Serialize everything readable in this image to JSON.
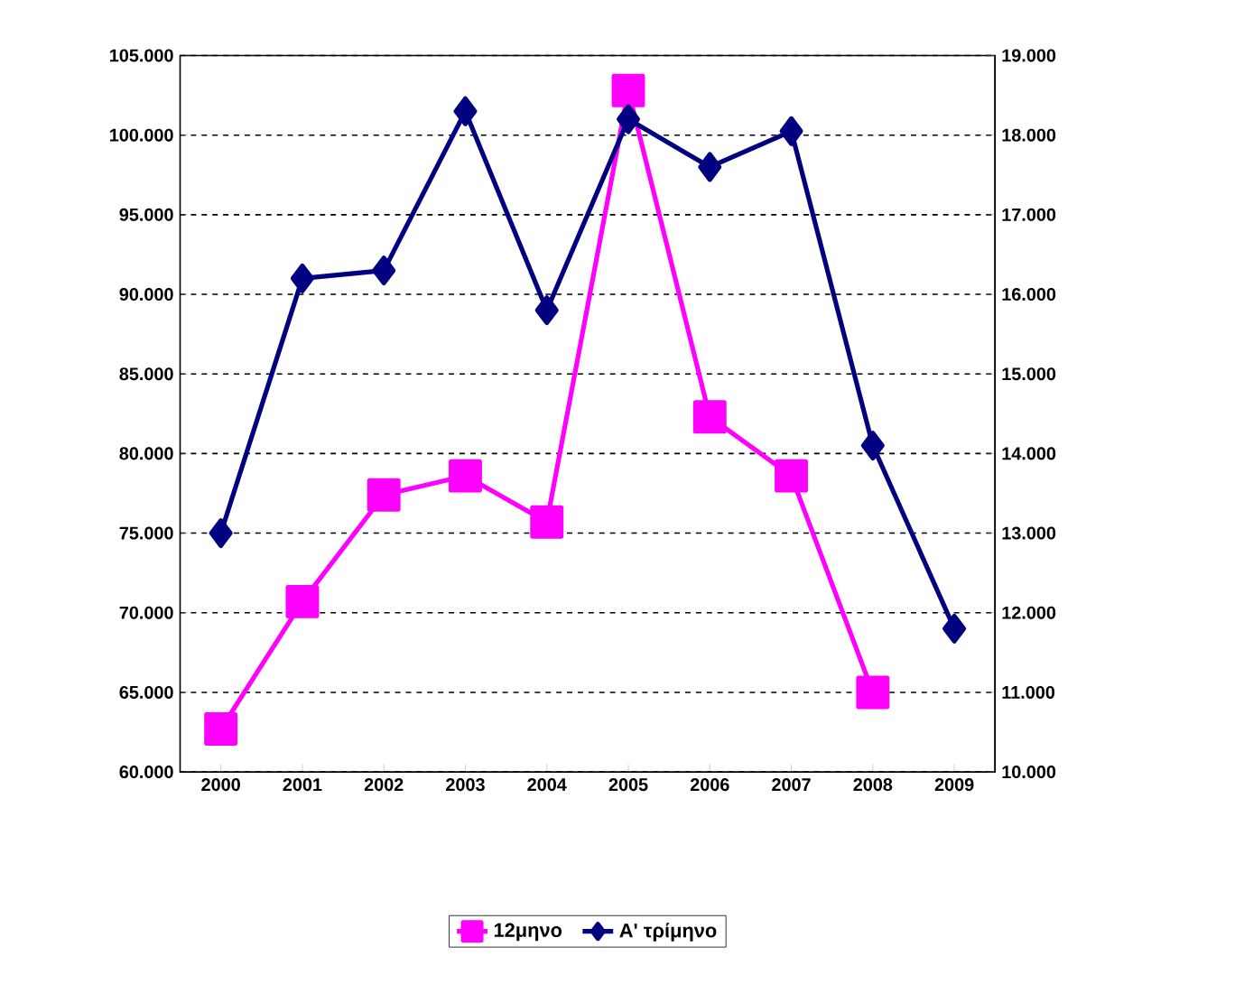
{
  "chart_data": {
    "type": "line",
    "categories": [
      "2000",
      "2001",
      "2002",
      "2003",
      "2004",
      "2005",
      "2006",
      "2007",
      "2008",
      "2009"
    ],
    "series": [
      {
        "name": "12μηνο",
        "color": "#ff00ff",
        "marker": "square",
        "values": [
          62700,
          70700,
          77400,
          78600,
          75700,
          102800,
          82300,
          78600,
          65000,
          null
        ]
      },
      {
        "name": "Α' τρίμηνο",
        "color": "#000080",
        "marker": "diamond",
        "axis": "y2",
        "values": [
          13000,
          16200,
          16300,
          18300,
          15800,
          18200,
          17600,
          18050,
          14100,
          11800
        ]
      }
    ],
    "ylim": [
      60000,
      105000
    ],
    "yticks": [
      {
        "value": 60000,
        "label": "60.000"
      },
      {
        "value": 65000,
        "label": "65.000"
      },
      {
        "value": 70000,
        "label": "70.000"
      },
      {
        "value": 75000,
        "label": "75.000"
      },
      {
        "value": 80000,
        "label": "80.000"
      },
      {
        "value": 85000,
        "label": "85.000"
      },
      {
        "value": 90000,
        "label": "90.000"
      },
      {
        "value": 95000,
        "label": "95.000"
      },
      {
        "value": 100000,
        "label": "100.000"
      },
      {
        "value": 105000,
        "label": "105.000"
      }
    ],
    "y2lim": [
      10000,
      19000
    ],
    "y2ticks": [
      {
        "value": 10000,
        "label": "10.000"
      },
      {
        "value": 11000,
        "label": "11.000"
      },
      {
        "value": 12000,
        "label": "12.000"
      },
      {
        "value": 13000,
        "label": "13.000"
      },
      {
        "value": 14000,
        "label": "14.000"
      },
      {
        "value": 15000,
        "label": "15.000"
      },
      {
        "value": 16000,
        "label": "16.000"
      },
      {
        "value": 17000,
        "label": "17.000"
      },
      {
        "value": 18000,
        "label": "18.000"
      },
      {
        "value": 19000,
        "label": "19.000"
      }
    ],
    "grid": "y",
    "legend": "bottom"
  }
}
